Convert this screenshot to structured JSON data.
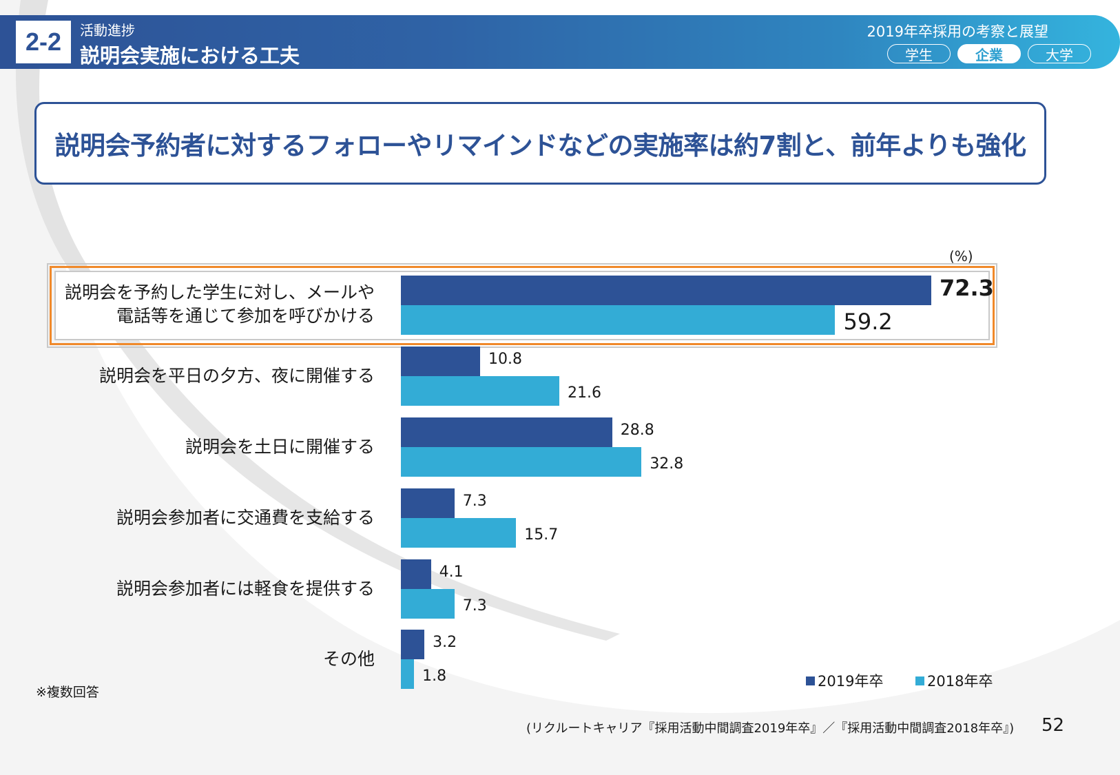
{
  "header": {
    "section_number": "2-2",
    "section_label": "活動進捗",
    "section_title": "説明会実施における工夫",
    "report_title": "2019年卒採用の考察と展望",
    "audience_tabs": [
      {
        "label": "学生",
        "active": false
      },
      {
        "label": "企業",
        "active": true
      },
      {
        "label": "大学",
        "active": false
      }
    ]
  },
  "headline": "説明会予約者に対するフォローやリマインドなどの実施率は約7割と、前年よりも強化",
  "colors": {
    "primary": "#2d5296",
    "secondary": "#33acd6",
    "highlight": "#f0892a"
  },
  "chart_data": {
    "type": "bar",
    "orientation": "horizontal",
    "unit_label": "(%)",
    "categories": [
      "説明会を予約した学生に対し、メールや\n電話等を通じて参加を呼びかける",
      "説明会を平日の夕方、夜に開催する",
      "説明会を土日に開催する",
      "説明会参加者に交通費を支給する",
      "説明会参加者には軽食を提供する",
      "その他"
    ],
    "series": [
      {
        "name": "2019年卒",
        "color": "#2d5296",
        "values": [
          72.3,
          10.8,
          28.8,
          7.3,
          4.1,
          3.2
        ]
      },
      {
        "name": "2018年卒",
        "color": "#33acd6",
        "values": [
          59.2,
          21.6,
          32.8,
          15.7,
          7.3,
          1.8
        ]
      }
    ],
    "value_labels": [
      [
        "72.3",
        "10.8",
        "28.8",
        "7.3",
        "4.1",
        "3.2"
      ],
      [
        "59.2",
        "21.6",
        "32.8",
        "15.7",
        "7.3",
        "1.8"
      ]
    ],
    "highlighted_category_index": 0,
    "xlim": [
      0,
      100
    ],
    "grid": false,
    "legend_position": "bottom-right"
  },
  "legend": [
    {
      "label": "2019年卒",
      "color": "#2d5296"
    },
    {
      "label": "2018年卒",
      "color": "#33acd6"
    }
  ],
  "note": "※複数回答",
  "source": "(リクルートキャリア『採用活動中間調査2019年卒』／『採用活動中間調査2018年卒』)",
  "page_number": "52"
}
